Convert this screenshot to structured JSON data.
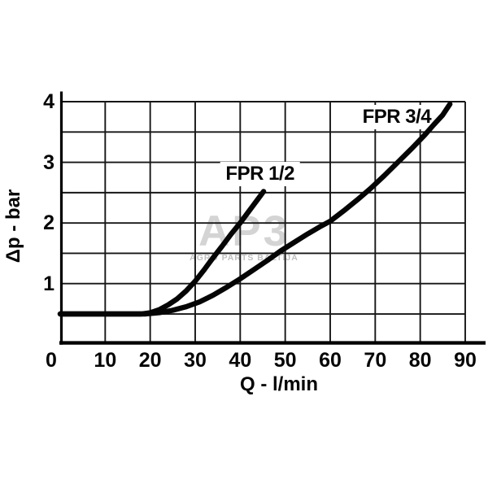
{
  "watermark": {
    "logo": "AP3",
    "subtitle": "AGRO PARTS BALTIJA"
  },
  "chart_data": {
    "type": "line",
    "title": "",
    "xlabel": "Q - l/min",
    "ylabel": "Δp - bar",
    "xlim": [
      0,
      90
    ],
    "ylim": [
      0,
      4
    ],
    "x_ticks": [
      0,
      10,
      20,
      30,
      40,
      50,
      60,
      70,
      80,
      90
    ],
    "y_ticks": [
      1,
      2,
      3,
      4
    ],
    "x_grid_step": 10,
    "y_grid_step": 0.5,
    "grid": "on",
    "legend": "inline-labels",
    "colors": {
      "curve": "#050505",
      "grid": "#161616",
      "axis": "#000000",
      "watermark_logo": "#d4d4d4",
      "watermark_text": "#bfbfbf",
      "background": "#ffffff"
    },
    "series": [
      {
        "name": "FPR 1/2",
        "label_anchor": [
          44.4,
          2.81
        ],
        "points": [
          [
            0,
            0.5
          ],
          [
            8,
            0.5
          ],
          [
            14,
            0.5
          ],
          [
            18,
            0.5
          ],
          [
            20,
            0.52
          ],
          [
            22,
            0.57
          ],
          [
            24,
            0.65
          ],
          [
            26,
            0.75
          ],
          [
            28,
            0.88
          ],
          [
            30,
            1.04
          ],
          [
            32,
            1.23
          ],
          [
            34,
            1.43
          ],
          [
            36,
            1.62
          ],
          [
            38,
            1.82
          ],
          [
            40,
            2.0
          ],
          [
            42,
            2.2
          ],
          [
            44,
            2.4
          ],
          [
            45.2,
            2.52
          ]
        ]
      },
      {
        "name": "FPR 3/4",
        "label_anchor": [
          74.8,
          3.74
        ],
        "points": [
          [
            0,
            0.5
          ],
          [
            8,
            0.5
          ],
          [
            14,
            0.5
          ],
          [
            19,
            0.5
          ],
          [
            22,
            0.52
          ],
          [
            25,
            0.56
          ],
          [
            28,
            0.62
          ],
          [
            31,
            0.7
          ],
          [
            34,
            0.81
          ],
          [
            37,
            0.94
          ],
          [
            40,
            1.08
          ],
          [
            43,
            1.23
          ],
          [
            46,
            1.38
          ],
          [
            49,
            1.54
          ],
          [
            52,
            1.68
          ],
          [
            55,
            1.82
          ],
          [
            58,
            1.95
          ],
          [
            60,
            2.03
          ],
          [
            63,
            2.2
          ],
          [
            66,
            2.38
          ],
          [
            69,
            2.57
          ],
          [
            72,
            2.78
          ],
          [
            75,
            3.0
          ],
          [
            78,
            3.22
          ],
          [
            81,
            3.45
          ],
          [
            83,
            3.62
          ],
          [
            85,
            3.78
          ],
          [
            86.6,
            3.96
          ]
        ]
      }
    ]
  }
}
